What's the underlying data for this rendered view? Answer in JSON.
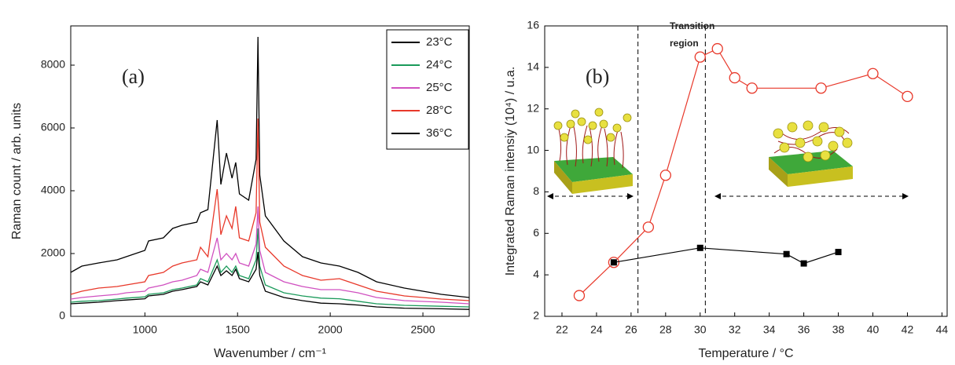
{
  "chart_data": [
    {
      "type": "line",
      "xlabel": "Wavenumber / cm⁻¹",
      "ylabel": "Raman count / arb. units",
      "annotation": "(a)",
      "xlim": [
        600,
        2750
      ],
      "ylim": [
        0,
        9250
      ],
      "xticks": [
        1000,
        1500,
        2000,
        2500
      ],
      "yticks": [
        0,
        2000,
        4000,
        6000,
        8000
      ],
      "legend": "upper right",
      "x": [
        600,
        660,
        750,
        850,
        900,
        1000,
        1020,
        1100,
        1150,
        1200,
        1280,
        1300,
        1340,
        1390,
        1410,
        1440,
        1470,
        1490,
        1510,
        1560,
        1600,
        1610,
        1620,
        1650,
        1750,
        1850,
        1950,
        2050,
        2100,
        2150,
        2250,
        2400,
        2600,
        2750
      ],
      "series": [
        {
          "name": "23°C",
          "color": "#000000",
          "values": [
            1400,
            1600,
            1700,
            1800,
            1900,
            2100,
            2400,
            2500,
            2800,
            2900,
            3000,
            3300,
            3400,
            6250,
            4200,
            5200,
            4400,
            4900,
            3900,
            3700,
            5000,
            8900,
            4500,
            3200,
            2400,
            1900,
            1700,
            1600,
            1500,
            1400,
            1100,
            900,
            700,
            600
          ]
        },
        {
          "name": "24°C",
          "color": "#1a9a5a",
          "values": [
            450,
            480,
            500,
            550,
            580,
            620,
            700,
            750,
            850,
            900,
            1000,
            1200,
            1100,
            1800,
            1400,
            1600,
            1400,
            1600,
            1300,
            1200,
            1800,
            2800,
            1600,
            1000,
            750,
            650,
            580,
            560,
            520,
            480,
            400,
            350,
            320,
            300
          ]
        },
        {
          "name": "25°C",
          "color": "#d050c0",
          "values": [
            550,
            600,
            650,
            700,
            750,
            800,
            900,
            1000,
            1100,
            1150,
            1300,
            1500,
            1400,
            2500,
            1800,
            2000,
            1800,
            2000,
            1700,
            1600,
            2300,
            3500,
            2100,
            1400,
            1100,
            950,
            850,
            850,
            800,
            750,
            600,
            500,
            450,
            400
          ]
        },
        {
          "name": "28°C",
          "color": "#e8382a",
          "values": [
            700,
            800,
            900,
            950,
            1000,
            1100,
            1300,
            1400,
            1600,
            1700,
            1800,
            2200,
            1900,
            4050,
            2600,
            3200,
            2800,
            3500,
            2500,
            2400,
            3300,
            6300,
            3000,
            2200,
            1600,
            1300,
            1150,
            1200,
            1100,
            1000,
            800,
            650,
            550,
            500
          ]
        },
        {
          "name": "36°C",
          "color": "#000000",
          "values": [
            400,
            420,
            450,
            500,
            520,
            560,
            650,
            700,
            800,
            850,
            950,
            1100,
            1000,
            1600,
            1300,
            1450,
            1300,
            1500,
            1200,
            1100,
            1500,
            2050,
            1300,
            800,
            600,
            500,
            420,
            400,
            380,
            360,
            300,
            260,
            240,
            220
          ]
        }
      ]
    },
    {
      "type": "line",
      "xlabel": "Temperature / °C",
      "ylabel": "Integrated Raman intensiy (10⁴) / u.a.",
      "annotations": [
        "(b)",
        "Transition",
        "region"
      ],
      "xlim": [
        21,
        44.3
      ],
      "ylim": [
        2,
        16
      ],
      "xticks": [
        22,
        24,
        26,
        28,
        30,
        32,
        34,
        36,
        38,
        40,
        42,
        44
      ],
      "yticks": [
        2,
        4,
        6,
        8,
        10,
        12,
        14,
        16
      ],
      "vlines": [
        26.4,
        30.3
      ],
      "series": [
        {
          "color": "#e8382a",
          "marker": "circle",
          "x": [
            23,
            25,
            27,
            28,
            30,
            31,
            32,
            33,
            37,
            40,
            42
          ],
          "values": [
            3,
            4.6,
            6.3,
            8.8,
            14.5,
            14.9,
            13.5,
            13,
            13,
            13.7,
            12.6
          ]
        },
        {
          "color": "#000000",
          "marker": "square",
          "x": [
            25,
            30,
            35,
            36,
            38
          ],
          "values": [
            4.6,
            5.3,
            5,
            4.55,
            5.1
          ]
        }
      ]
    }
  ]
}
